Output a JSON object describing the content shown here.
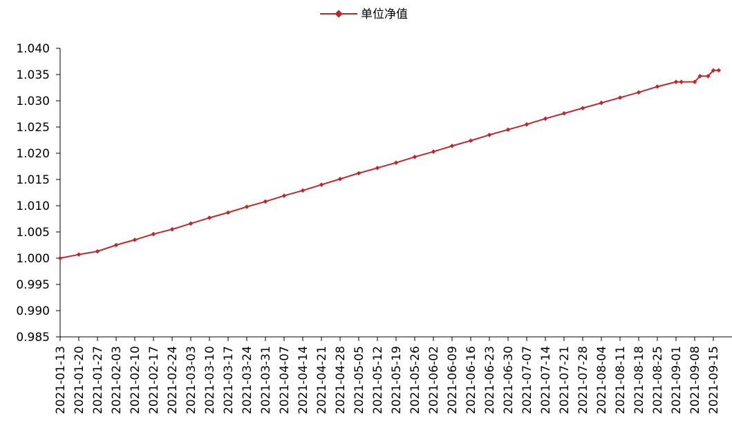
{
  "chart_data": {
    "type": "line",
    "title": "",
    "xlabel": "",
    "ylabel": "",
    "ylim": [
      0.985,
      1.04
    ],
    "yticks": [
      "1.040",
      "1.035",
      "1.030",
      "1.025",
      "1.020",
      "1.015",
      "1.010",
      "1.005",
      "1.000",
      "0.995",
      "0.990",
      "0.985"
    ],
    "x_tick_labels": [
      "2021-01-13",
      "2021-01-20",
      "2021-01-27",
      "2021-02-03",
      "2021-02-10",
      "2021-02-17",
      "2021-02-24",
      "2021-03-03",
      "2021-03-10",
      "2021-03-17",
      "2021-03-24",
      "2021-03-31",
      "2021-04-07",
      "2021-04-14",
      "2021-04-21",
      "2021-04-28",
      "2021-05-05",
      "2021-05-12",
      "2021-05-19",
      "2021-05-26",
      "2021-06-02",
      "2021-06-09",
      "2021-06-16",
      "2021-06-23",
      "2021-06-30",
      "2021-07-07",
      "2021-07-14",
      "2021-07-21",
      "2021-07-28",
      "2021-08-04",
      "2021-08-11",
      "2021-08-18",
      "2021-08-25",
      "2021-09-01",
      "2021-09-08",
      "2021-09-15"
    ],
    "x": [
      "2021-01-13",
      "2021-01-20",
      "2021-01-27",
      "2021-02-03",
      "2021-02-10",
      "2021-02-17",
      "2021-02-24",
      "2021-03-03",
      "2021-03-10",
      "2021-03-17",
      "2021-03-24",
      "2021-03-31",
      "2021-04-07",
      "2021-04-14",
      "2021-04-21",
      "2021-04-28",
      "2021-05-05",
      "2021-05-12",
      "2021-05-19",
      "2021-05-26",
      "2021-06-02",
      "2021-06-09",
      "2021-06-16",
      "2021-06-23",
      "2021-06-30",
      "2021-07-07",
      "2021-07-14",
      "2021-07-21",
      "2021-07-28",
      "2021-08-04",
      "2021-08-11",
      "2021-08-18",
      "2021-08-25",
      "2021-09-01",
      "2021-09-03",
      "2021-09-08",
      "2021-09-10",
      "2021-09-13",
      "2021-09-15",
      "2021-09-17"
    ],
    "series": [
      {
        "name": "单位净值",
        "color": "#c0272d",
        "values": [
          1.0,
          1.0007,
          1.0013,
          1.0025,
          1.0035,
          1.0046,
          1.0055,
          1.0066,
          1.0077,
          1.0087,
          1.0098,
          1.0108,
          1.0119,
          1.0129,
          1.014,
          1.0151,
          1.0162,
          1.0172,
          1.0182,
          1.0193,
          1.0203,
          1.0214,
          1.0224,
          1.0235,
          1.0245,
          1.0255,
          1.0266,
          1.0276,
          1.0286,
          1.0296,
          1.0306,
          1.0316,
          1.0327,
          1.0336,
          1.0336,
          1.0336,
          1.0347,
          1.0347,
          1.0358,
          1.0358
        ]
      }
    ],
    "legend_position": "top-center",
    "grid": false
  }
}
